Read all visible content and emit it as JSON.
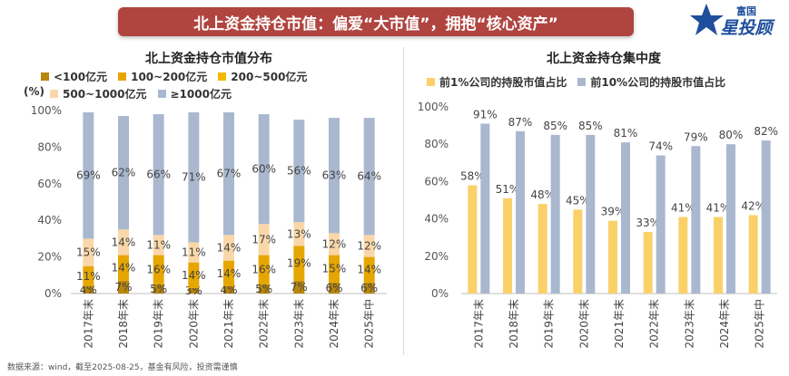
{
  "banner": {
    "title": "北上资金持仓市值：偏爱“大市值”，拥抱“核心资产”"
  },
  "logo": {
    "text_top": "富国",
    "text_main": "星投顾"
  },
  "footer": {
    "source": "数据来源：wind，截至2025-08-25，基金有风险，投资需谨慎"
  },
  "colors": {
    "banner_bg": "#b0443f",
    "lt100": "#b8860b",
    "b100_200": "#e6a600",
    "b200_500": "#f5b700",
    "b500_1000": "#fad7a8",
    "gte1000": "#a9b8cf",
    "top1": "#fad169",
    "top10": "#a9b8cf"
  },
  "chart_data": [
    {
      "type": "bar",
      "stacked": true,
      "title": "北上资金持仓市值分布",
      "unit": "(%)",
      "ylim": [
        0,
        100
      ],
      "yticks": [
        "0%",
        "20%",
        "40%",
        "60%",
        "80%",
        "100%"
      ],
      "categories": [
        "2017年末",
        "2018年末",
        "2019年末",
        "2020年末",
        "2021年末",
        "2022年末",
        "2023年末",
        "2024年末",
        "2025年中"
      ],
      "legend_placement": "top",
      "series": [
        {
          "name": "<100亿元",
          "values": [
            4,
            7,
            5,
            3,
            4,
            5,
            7,
            6,
            6
          ],
          "labels": [
            "4%",
            "7%",
            "5%",
            "3%",
            "4%",
            "5%",
            "7%",
            "6%",
            "6%"
          ]
        },
        {
          "name": "100~200亿元",
          "values": [
            11,
            14,
            16,
            14,
            14,
            16,
            19,
            15,
            14
          ],
          "labels": [
            "11%",
            "14%",
            "16%",
            "14%",
            "14%",
            "16%",
            "19%",
            "15%",
            "14%"
          ]
        },
        {
          "name": "200~500亿元",
          "values": [
            0,
            0,
            0,
            0,
            0,
            0,
            0,
            0,
            0
          ],
          "labels": [
            "",
            "",
            "",
            "",
            "",
            "",
            "",
            "",
            ""
          ]
        },
        {
          "name": "500~1000亿元",
          "values": [
            15,
            14,
            11,
            11,
            14,
            17,
            13,
            12,
            12
          ],
          "labels": [
            "15%",
            "14%",
            "11%",
            "11%",
            "14%",
            "17%",
            "13%",
            "12%",
            "12%"
          ]
        },
        {
          "name": "≥1000亿元",
          "values": [
            69,
            62,
            66,
            71,
            67,
            60,
            56,
            63,
            64
          ],
          "labels": [
            "69%",
            "62%",
            "66%",
            "71%",
            "67%",
            "60%",
            "56%",
            "63%",
            "64%"
          ]
        }
      ]
    },
    {
      "type": "bar",
      "title": "北上资金持仓集中度",
      "ylim": [
        0,
        100
      ],
      "yticks": [
        "0%",
        "20%",
        "40%",
        "60%",
        "80%",
        "100%"
      ],
      "categories": [
        "2017年末",
        "2018年末",
        "2019年末",
        "2020年末",
        "2021年末",
        "2022年末",
        "2023年末",
        "2024年末",
        "2025年中"
      ],
      "legend_placement": "top",
      "series": [
        {
          "name": "前1%公司的持股市值占比",
          "values": [
            58,
            51,
            48,
            45,
            39,
            33,
            41,
            41,
            42
          ],
          "labels": [
            "58%",
            "51%",
            "48%",
            "45%",
            "39%",
            "33%",
            "41%",
            "41%",
            "42%"
          ]
        },
        {
          "name": "前10%公司的持股市值占比",
          "values": [
            91,
            87,
            85,
            85,
            81,
            74,
            79,
            80,
            82
          ],
          "labels": [
            "91%",
            "87%",
            "85%",
            "85%",
            "81%",
            "74%",
            "79%",
            "80%",
            "82%"
          ]
        }
      ]
    }
  ]
}
